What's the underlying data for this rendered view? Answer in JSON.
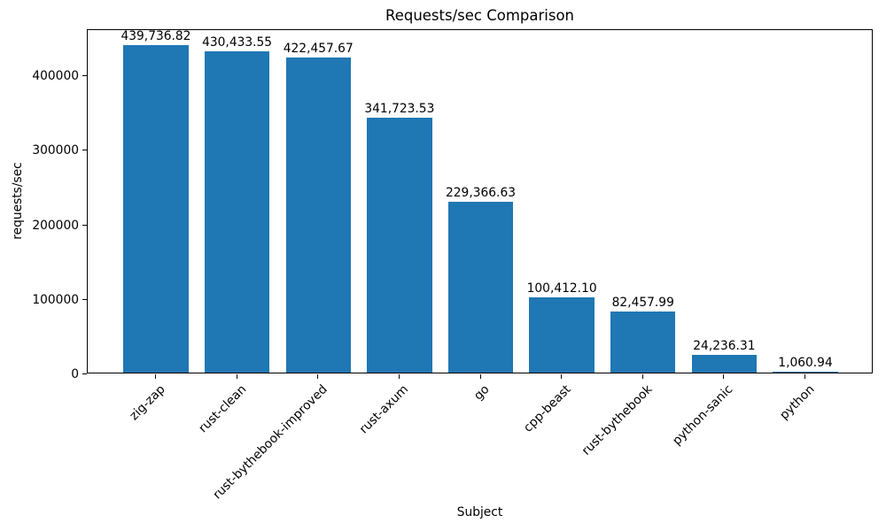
{
  "chart_data": {
    "type": "bar",
    "title": "Requests/sec Comparison",
    "xlabel": "Subject",
    "ylabel": "requests/sec",
    "categories": [
      "zig-zap",
      "rust-clean",
      "rust-bythebook-improved",
      "rust-axum",
      "go",
      "cpp-beast",
      "rust-bythebook",
      "python-sanic",
      "python"
    ],
    "values": [
      439736.82,
      430433.55,
      422457.67,
      341723.53,
      229366.63,
      100412.1,
      82457.99,
      24236.31,
      1060.94
    ],
    "value_labels": [
      "439,736.82",
      "430,433.55",
      "422,457.67",
      "341,723.53",
      "229,366.63",
      "100,412.10",
      "82,457.99",
      "24,236.31",
      "1,060.94"
    ],
    "y_ticks": [
      0,
      100000,
      200000,
      300000,
      400000
    ],
    "y_tick_labels": [
      "0",
      "100000",
      "200000",
      "300000",
      "400000"
    ],
    "ylim": [
      0,
      461724
    ],
    "bar_color": "#1f77b4",
    "background_color": "#ffffff",
    "grid": false,
    "legend_position": "none"
  }
}
